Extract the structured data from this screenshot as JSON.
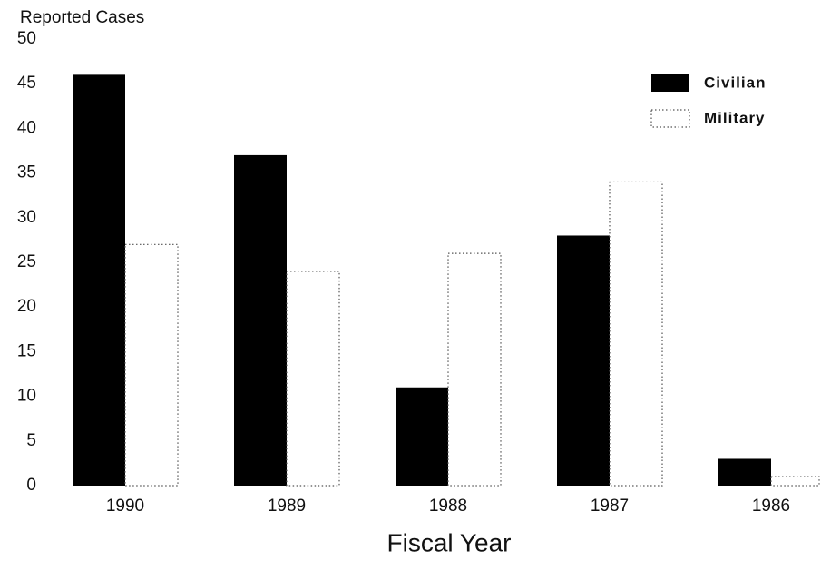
{
  "chart_data": {
    "type": "bar",
    "y_label": "Reported Cases",
    "x_label": "Fiscal Year",
    "categories": [
      "1990",
      "1989",
      "1988",
      "1987",
      "1986"
    ],
    "series": [
      {
        "name": "Civilian",
        "color": "#000000",
        "values": [
          46,
          37,
          11,
          28,
          3
        ]
      },
      {
        "name": "Military",
        "color": "#ffffff",
        "values": [
          27,
          24,
          26,
          34,
          1
        ]
      }
    ],
    "ylim": [
      0,
      50
    ],
    "yticks": [
      0,
      5,
      10,
      15,
      20,
      25,
      30,
      35,
      40,
      45,
      50
    ],
    "legend": "upper right"
  }
}
